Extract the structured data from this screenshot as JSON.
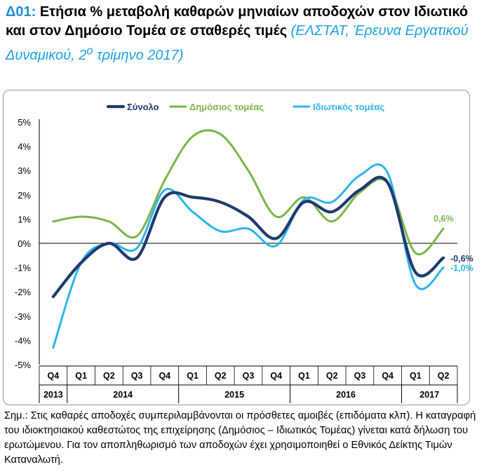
{
  "header": {
    "code": "Δ01:",
    "title": "Ετήσια % μεταβολή καθαρών μηνιαίων αποδοχών στον Ιδιωτικό και στον Δημόσιο Τομέα σε σταθερές τιμές",
    "source_pre": "(ΕΛΣΤΑΤ, Έρευνα Εργατικού Δυναμικού, 2",
    "source_sup": "ο",
    "source_post": " τρίμηνο 2017)"
  },
  "chart_data": {
    "type": "line",
    "quarters": [
      "Q4",
      "Q1",
      "Q2",
      "Q3",
      "Q4",
      "Q1",
      "Q2",
      "Q3",
      "Q4",
      "Q1",
      "Q2",
      "Q3",
      "Q4",
      "Q1",
      "Q2"
    ],
    "years": [
      {
        "label": "2013",
        "span": 1
      },
      {
        "label": "2014",
        "span": 4
      },
      {
        "label": "2015",
        "span": 4
      },
      {
        "label": "2016",
        "span": 4
      },
      {
        "label": "2017",
        "span": 2
      }
    ],
    "y_ticks": [
      "5%",
      "4%",
      "3%",
      "2%",
      "1%",
      "0%",
      "-1%",
      "-2%",
      "-3%",
      "-4%",
      "-5%"
    ],
    "ylim": [
      -5,
      5
    ],
    "grid": false,
    "legend_position": "top",
    "series": [
      {
        "name": "Σύνολο",
        "color": "#1f3a6e",
        "bold": true,
        "values": [
          -2.2,
          -0.8,
          0.0,
          -0.6,
          1.9,
          1.9,
          1.7,
          1.1,
          0.2,
          1.7,
          1.3,
          2.2,
          2.5,
          -1.2,
          -0.6
        ]
      },
      {
        "name": "Δημόσιος τομέας",
        "color": "#7ab648",
        "bold": false,
        "values": [
          0.9,
          1.1,
          0.9,
          0.3,
          2.6,
          4.4,
          4.5,
          3.0,
          1.1,
          1.9,
          0.9,
          2.1,
          2.5,
          -0.4,
          0.6
        ]
      },
      {
        "name": "Ιδιωτικός τομέας",
        "color": "#2cb5ec",
        "bold": false,
        "values": [
          -4.3,
          -0.8,
          0.0,
          -0.2,
          2.2,
          1.3,
          0.5,
          0.6,
          -0.1,
          1.8,
          1.7,
          2.8,
          2.9,
          -1.7,
          -1.0
        ]
      }
    ],
    "end_labels": [
      {
        "text": "0,6%",
        "color": "#7ab648"
      },
      {
        "text": "-0,6%",
        "color": "#1f3a6e"
      },
      {
        "text": "-1,0%",
        "color": "#2cb5ec"
      }
    ]
  },
  "note": "Σημ.: Στις καθαρές αποδοχές συμπεριλαμβάνονται οι πρόσθετες αμοιβές (επιδόματα κλπ). Η καταγραφή του ιδιοκτησιακού καθεστώτος της επιχείρησης (Δημόσιος – Ιδιωτικός Τομέας) γίνεται κατά δήλωση του ερωτώμενου. Για τον αποπληθωρισμό των αποδοχών έχει χρησιμοποιηθεί ο Εθνικός Δείκτης Τιμών Καταναλωτή."
}
